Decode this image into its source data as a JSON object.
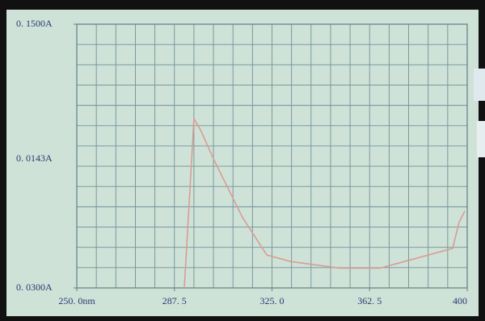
{
  "chart_data": {
    "type": "line",
    "x": [
      291.3,
      293.2,
      295.0,
      297.5,
      302.8,
      313.7,
      323.0,
      332.3,
      350.9,
      366.5,
      382.0,
      394.4,
      396.9,
      399.1
    ],
    "series": [
      {
        "color": "#d99c94",
        "values": [
          0.03,
          0.069,
          0.107,
          0.102,
          0.088,
          0.062,
          0.045,
          0.042,
          0.039,
          0.039,
          0.044,
          0.048,
          0.06,
          0.065
        ]
      }
    ],
    "xlim": [
      250,
      400
    ],
    "xticks": [
      {
        "value": 250,
        "label": "250. 0nm"
      },
      {
        "value": 287.5,
        "label": "287. 5"
      },
      {
        "value": 325,
        "label": "325. 0"
      },
      {
        "value": 362.5,
        "label": "362. 5"
      },
      400
    ],
    "ylim": [
      0.03,
      0.15
    ],
    "yticks": [
      {
        "value": 0.15,
        "label": "0. 1500A"
      },
      {
        "value": 0.03,
        "label": "0. 0300A"
      }
    ],
    "annotations": [
      "0. 0143A"
    ],
    "grid": true
  }
}
